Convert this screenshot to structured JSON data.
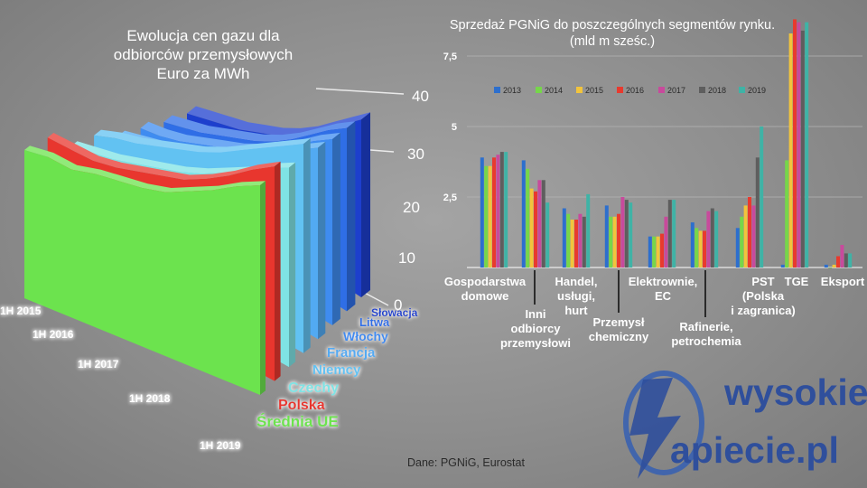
{
  "source_note": "Dane: PGNiG, Eurostat",
  "logo": {
    "line1": "wysokie",
    "line2": "apiecie.pl",
    "initial_w": "w",
    "initial_n": "N"
  },
  "colors": {
    "left": {
      "Średnia UE": "#6ce34e",
      "Polska": "#e8362e",
      "Czechy": "#7fe3e4",
      "Niemcy": "#62c2f2",
      "Francja": "#52aaf2",
      "Włochy": "#3f8cf0",
      "Litwa": "#2f6ee6",
      "Słowacja": "#1d3fcd"
    },
    "right": [
      "#2d6fcd",
      "#76d64a",
      "#f2c43c",
      "#e83a2e",
      "#c84a9c",
      "#5e5e5e",
      "#3fb3a6"
    ]
  },
  "chart_data": [
    {
      "type": "area",
      "title": "Ewolucja cen gazu dla odbiorców przemysłowych Euro za MWh",
      "title_lines": [
        "Ewolucja cen gazu dla",
        "odbiorców przemysłowych",
        "Euro za MWh"
      ],
      "z_ticks": [
        "40",
        "30",
        "20",
        "10",
        "0"
      ],
      "period_labels": [
        "1H 2015",
        "1H 2016",
        "1H 2017",
        "1H 2018",
        "1H 2019"
      ],
      "series": [
        {
          "name": "Średnia UE",
          "values": [
            32,
            30,
            26,
            25,
            23,
            21,
            20,
            21,
            22,
            24,
            25
          ]
        },
        {
          "name": "Polska",
          "values": [
            35,
            31,
            27,
            25,
            24,
            23,
            22,
            23,
            25,
            28,
            30
          ]
        },
        {
          "name": "Czechy",
          "values": [
            30,
            28,
            26,
            25,
            24,
            23,
            23,
            24,
            25,
            27,
            28
          ]
        },
        {
          "name": "Niemcy",
          "values": [
            33,
            32,
            30,
            29,
            28,
            27,
            27,
            28,
            29,
            30,
            31
          ]
        },
        {
          "name": "Francja",
          "values": [
            31,
            29,
            27,
            26,
            25,
            24,
            24,
            25,
            26,
            27,
            28
          ]
        },
        {
          "name": "Włochy",
          "values": [
            33,
            30,
            28,
            27,
            26,
            25,
            25,
            26,
            27,
            29,
            30
          ]
        },
        {
          "name": "Litwa",
          "values": [
            34,
            32,
            30,
            29,
            28,
            27,
            27,
            28,
            30,
            32,
            33
          ]
        },
        {
          "name": "Słowacja",
          "values": [
            36,
            34,
            32,
            30,
            29,
            28,
            28,
            29,
            31,
            33,
            35
          ]
        }
      ]
    },
    {
      "type": "bar",
      "title": "Sprzedaż PGNiG do poszczególnych segmentów rynku.",
      "subtitle": "(mld m sześc.)",
      "ylim": [
        0,
        8.5
      ],
      "y_ticks": [
        "7,5",
        "5",
        "2,5"
      ],
      "categories": [
        "Gospodarstwa domowe",
        "Inni odbiorcy przemysłowi",
        "Handel, usługi, hurt",
        "Przemysł chemiczny",
        "Elektrownie, EC",
        "Rafinerie, petrochemia",
        "PST (Polska i zagranica)",
        "TGE",
        "Eksport"
      ],
      "category_label_lines": [
        [
          "Gospodarstwa",
          "domowe"
        ],
        [
          "Inni",
          "odbiorcy",
          "przemysłowi"
        ],
        [
          "Handel,",
          "usługi,",
          "hurt"
        ],
        [
          "Przemysł",
          "chemiczny"
        ],
        [
          "Elektrownie,",
          "EC"
        ],
        [
          "Rafinerie,",
          "petrochemia"
        ],
        [
          "PST",
          "(Polska",
          "i zagranica)"
        ],
        [
          "TGE"
        ],
        [
          "Eksport"
        ]
      ],
      "series": [
        {
          "name": "2013",
          "values": [
            3.9,
            3.8,
            2.1,
            2.2,
            1.1,
            1.6,
            1.4,
            0.1,
            0.1
          ]
        },
        {
          "name": "2014",
          "values": [
            3.6,
            3.5,
            1.9,
            1.8,
            1.1,
            1.4,
            1.8,
            3.8,
            0.0
          ]
        },
        {
          "name": "2015",
          "values": [
            3.6,
            2.8,
            1.7,
            1.8,
            1.1,
            1.3,
            2.2,
            8.3,
            0.1
          ]
        },
        {
          "name": "2016",
          "values": [
            3.9,
            2.7,
            1.7,
            1.9,
            1.2,
            1.3,
            2.5,
            8.8,
            0.4
          ]
        },
        {
          "name": "2017",
          "values": [
            4.0,
            3.1,
            1.9,
            2.5,
            1.8,
            2.0,
            2.2,
            8.7,
            0.8
          ]
        },
        {
          "name": "2018",
          "values": [
            4.1,
            3.1,
            1.8,
            2.4,
            2.4,
            2.1,
            3.9,
            8.4,
            0.5
          ]
        },
        {
          "name": "2019",
          "values": [
            4.1,
            2.3,
            2.6,
            2.3,
            2.4,
            2.0,
            5.0,
            8.7,
            0.5
          ]
        }
      ],
      "legend_placement": "top-inside"
    }
  ]
}
